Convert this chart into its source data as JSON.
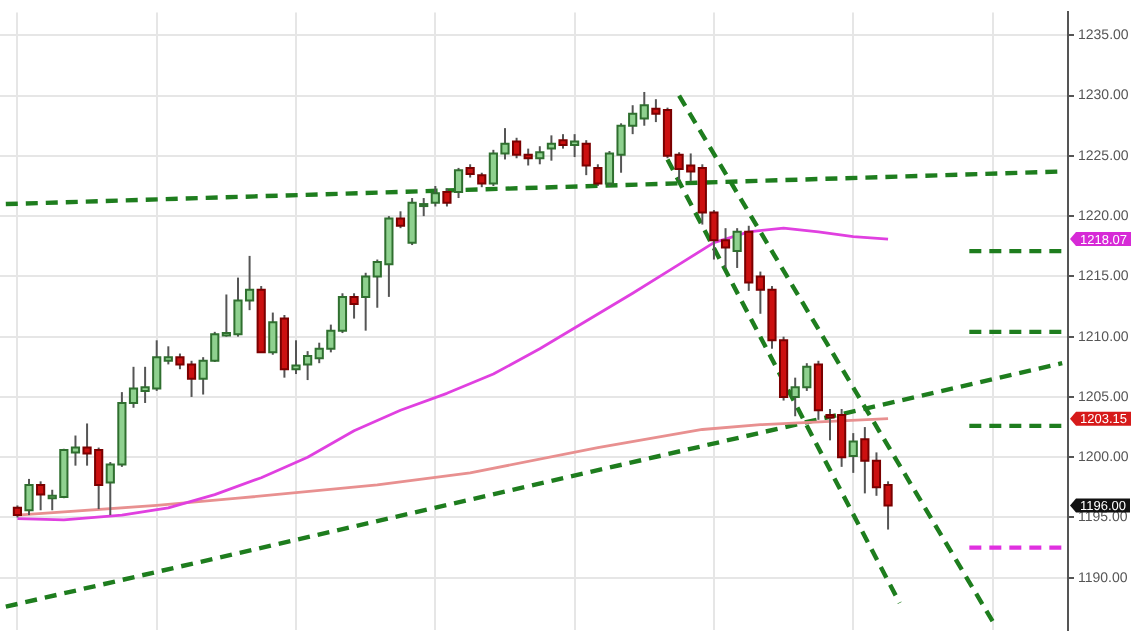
{
  "chart_data": {
    "type": "candlestick",
    "categories": [
      null,
      null,
      null,
      null,
      null,
      null,
      null,
      null,
      null,
      null,
      null,
      null,
      null,
      null,
      null,
      null,
      null,
      null,
      null,
      null,
      null,
      null,
      null,
      null,
      null,
      null,
      null,
      null,
      null,
      null,
      null,
      null,
      null,
      null,
      null,
      null,
      null,
      null,
      null,
      null,
      null,
      null,
      null,
      null,
      null,
      null,
      null,
      null,
      null,
      null,
      null,
      null,
      null,
      null,
      null,
      null,
      null,
      null,
      null,
      null,
      null,
      null,
      null,
      null,
      null,
      null,
      null,
      null,
      null,
      null,
      null,
      null,
      null,
      null,
      null,
      null,
      null,
      null,
      null,
      null,
      null,
      null,
      null,
      null,
      null,
      null,
      null,
      null,
      null,
      null,
      null,
      null
    ],
    "ohlc": [
      null,
      [
        1195.8,
        1196,
        1195,
        1195.2
      ],
      [
        1195.6,
        1198.2,
        1195.2,
        1197.7
      ],
      [
        1197.7,
        1198,
        1195.6,
        1196.9
      ],
      [
        1196.6,
        1197.3,
        1195.6,
        1196.8
      ],
      [
        1196.7,
        1200.7,
        1196.6,
        1200.6
      ],
      [
        1200.4,
        1201.8,
        1199.3,
        1200.8
      ],
      [
        1200.8,
        1202.8,
        1199.3,
        1200.3
      ],
      [
        1200.6,
        1200.8,
        1195.7,
        1197.7
      ],
      [
        1197.9,
        1199.6,
        1195.2,
        1199.4
      ],
      [
        1199.4,
        1205.4,
        1199.2,
        1204.5
      ],
      [
        1204.5,
        1207.5,
        1204.1,
        1205.7
      ],
      [
        1205.5,
        1207.5,
        1204.5,
        1205.8
      ],
      [
        1205.7,
        1209.7,
        1205.5,
        1208.3
      ],
      [
        1208,
        1209.2,
        1207.7,
        1208.3
      ],
      [
        1208.3,
        1208.6,
        1207.3,
        1207.7
      ],
      [
        1207.7,
        1208,
        1205,
        1206.5
      ],
      [
        1206.5,
        1208.3,
        1205.2,
        1208
      ],
      [
        1208,
        1210.4,
        1207.9,
        1210.2
      ],
      [
        1210.1,
        1213.5,
        1210,
        1210.3
      ],
      [
        1210.2,
        1214.9,
        1210,
        1213
      ],
      [
        1213,
        1216.7,
        1212.2,
        1213.9
      ],
      [
        1213.9,
        1214.2,
        1208.7,
        1208.7
      ],
      [
        1208.7,
        1212,
        1208.5,
        1211.2
      ],
      [
        1211.5,
        1211.8,
        1206.6,
        1207.3
      ],
      [
        1207.3,
        1209.7,
        1206.9,
        1207.6
      ],
      [
        1207.7,
        1208.8,
        1206.4,
        1208.4
      ],
      [
        1208.2,
        1209.5,
        1207.8,
        1209
      ],
      [
        1209,
        1211,
        1208.7,
        1210.5
      ],
      [
        1210.5,
        1213.6,
        1210.3,
        1213.3
      ],
      [
        1213.3,
        1213.6,
        1211.5,
        1212.7
      ],
      [
        1213.3,
        1215.3,
        1210.5,
        1215
      ],
      [
        1215,
        1216.4,
        1212.4,
        1216.2
      ],
      [
        1216,
        1220,
        1213.3,
        1219.8
      ],
      [
        1219.8,
        1220.4,
        1219,
        1219.2
      ],
      [
        1217.8,
        1221.5,
        1217.6,
        1221.1
      ],
      [
        1220.9,
        1221.5,
        1220,
        1221
      ],
      [
        1221.1,
        1222.5,
        1220.8,
        1221.9
      ],
      [
        1222,
        1222.3,
        1220.8,
        1221.1
      ],
      [
        1222,
        1224,
        1221.5,
        1223.8
      ],
      [
        1224,
        1224.3,
        1223.2,
        1223.5
      ],
      [
        1223.4,
        1223.6,
        1222.4,
        1222.7
      ],
      [
        1222.7,
        1225.5,
        1222.5,
        1225.2
      ],
      [
        1225.2,
        1227.3,
        1224.7,
        1226
      ],
      [
        1226.2,
        1226.5,
        1224.8,
        1225.1
      ],
      [
        1225.1,
        1225.6,
        1224.2,
        1224.8
      ],
      [
        1224.8,
        1225.8,
        1224.3,
        1225.3
      ],
      [
        1225.6,
        1226.7,
        1224.6,
        1226
      ],
      [
        1226.3,
        1226.8,
        1225.6,
        1225.9
      ],
      [
        1225.9,
        1226.8,
        1224.9,
        1226.2
      ],
      [
        1226,
        1226.3,
        1223.4,
        1224.2
      ],
      [
        1224,
        1224.3,
        1222.5,
        1222.7
      ],
      [
        1222.7,
        1225.4,
        1222.5,
        1225.2
      ],
      [
        1225.1,
        1227.7,
        1223.6,
        1227.5
      ],
      [
        1227.5,
        1229.2,
        1226.8,
        1228.5
      ],
      [
        1228.1,
        1230.3,
        1227.5,
        1229.2
      ],
      [
        1228.9,
        1229.7,
        1227.8,
        1228.5
      ],
      [
        1228.8,
        1229,
        1224.8,
        1225
      ],
      [
        1225.1,
        1225.3,
        1223,
        1223.9
      ],
      [
        1224.2,
        1225.2,
        1222.9,
        1223.7
      ],
      [
        1224,
        1224.3,
        1219.3,
        1220.3
      ],
      [
        1220.3,
        1220.5,
        1216.4,
        1218
      ],
      [
        1218,
        1219,
        1215.7,
        1217.4
      ],
      [
        1217.1,
        1219,
        1215.7,
        1218.7
      ],
      [
        1218.7,
        1219.2,
        1213.8,
        1214.5
      ],
      [
        1215,
        1215.4,
        1211.9,
        1213.9
      ],
      [
        1213.9,
        1214.2,
        1209,
        1209.7
      ],
      [
        1209.7,
        1210,
        1204.7,
        1205
      ],
      [
        1205,
        1206.6,
        1203.4,
        1205.8
      ],
      [
        1205.8,
        1207.8,
        1205.5,
        1207.5
      ],
      [
        1207.7,
        1208,
        1203.1,
        1203.9
      ],
      [
        1203.5,
        1204,
        1201.4,
        1203.3
      ],
      [
        1203.5,
        1204,
        1199.2,
        1200
      ],
      [
        1200.1,
        1202,
        1198.7,
        1201.3
      ],
      [
        1201.5,
        1202.5,
        1197,
        1199.7
      ],
      [
        1199.7,
        1200.4,
        1196.8,
        1197.5
      ],
      [
        1197.7,
        1198,
        1194,
        1196
      ],
      null,
      null,
      null,
      null,
      null,
      null,
      null,
      null,
      null,
      null,
      null,
      null,
      null,
      null,
      null
    ],
    "colors": [
      null,
      "#cc1010",
      "#8fd18f",
      "#cc1010",
      "#8fd18f",
      "#8fd18f",
      "#8fd18f",
      "#cc1010",
      "#cc1010",
      "#8fd18f",
      "#8fd18f",
      "#8fd18f",
      "#8fd18f",
      "#8fd18f",
      "#8fd18f",
      "#cc1010",
      "#cc1010",
      "#8fd18f",
      "#8fd18f",
      "#8fd18f",
      "#8fd18f",
      "#8fd18f",
      "#cc1010",
      "#8fd18f",
      "#cc1010",
      "#8fd18f",
      "#8fd18f",
      "#8fd18f",
      "#8fd18f",
      "#8fd18f",
      "#cc1010",
      "#8fd18f",
      "#8fd18f",
      "#8fd18f",
      "#cc1010",
      "#8fd18f",
      "#8fd18f",
      "#8fd18f",
      "#cc1010",
      "#8fd18f",
      "#cc1010",
      "#cc1010",
      "#8fd18f",
      "#8fd18f",
      "#cc1010",
      "#cc1010",
      "#8fd18f",
      "#8fd18f",
      "#cc1010",
      "#8fd18f",
      "#cc1010",
      "#cc1010",
      "#8fd18f",
      "#8fd18f",
      "#8fd18f",
      "#8fd18f",
      "#cc1010",
      "#cc1010",
      "#cc1010",
      "#cc1010",
      "#cc1010",
      "#cc1010",
      "#cc1010",
      "#8fd18f",
      "#cc1010",
      "#cc1010",
      "#cc1010",
      "#cc1010",
      "#8fd18f",
      "#8fd18f",
      "#cc1010",
      "#cc1010",
      "#cc1010",
      "#8fd18f",
      "#cc1010",
      "#cc1010",
      "#cc1010",
      null,
      null,
      null,
      null,
      null,
      null,
      null,
      null,
      null,
      null,
      null,
      null,
      null,
      null,
      null
    ],
    "series": [
      {
        "type": "line",
        "color": "#e040e0",
        "values": [
          null,
          1194.9,
          null,
          null,
          null,
          1194.8,
          null,
          null,
          null,
          null,
          1195.2,
          null,
          null,
          null,
          1195.8,
          null,
          null,
          null,
          1196.9,
          null,
          null,
          null,
          1198.3,
          null,
          null,
          null,
          1200.0,
          null,
          null,
          null,
          1202.2,
          null,
          null,
          null,
          1203.9,
          null,
          null,
          null,
          1205.3,
          null,
          null,
          null,
          1206.9,
          null,
          null,
          null,
          1209.0,
          null,
          null,
          null,
          1211.3,
          null,
          null,
          null,
          1213.6,
          null,
          null,
          null,
          1216.0,
          null,
          null,
          1217.8,
          null,
          null,
          1218.7,
          null,
          null,
          1219.0,
          null,
          null,
          1218.7,
          null,
          null,
          1218.3,
          null,
          null,
          1218.1,
          null,
          null,
          null,
          null,
          null,
          null,
          null,
          null,
          null,
          null,
          null,
          null,
          null,
          null,
          null
        ]
      },
      {
        "type": "line",
        "color": "#e89090",
        "values": [
          null,
          1195.2,
          null,
          null,
          null,
          null,
          null,
          null,
          null,
          null,
          null,
          null,
          null,
          1196.0,
          null,
          null,
          null,
          null,
          null,
          null,
          1196.6,
          null,
          null,
          null,
          null,
          null,
          null,
          null,
          null,
          null,
          null,
          null,
          1197.7,
          null,
          null,
          null,
          null,
          null,
          null,
          null,
          1198.7,
          null,
          null,
          null,
          null,
          null,
          null,
          null,
          null,
          null,
          null,
          1200.8,
          null,
          null,
          null,
          null,
          null,
          null,
          null,
          null,
          1202.3,
          null,
          null,
          null,
          null,
          1202.7,
          null,
          null,
          null,
          null,
          null,
          null,
          null,
          null,
          null,
          null,
          1203.2,
          null,
          null,
          null,
          null,
          null,
          null,
          null,
          null,
          null,
          null,
          null,
          null,
          null,
          null,
          null
        ]
      },
      {
        "type": "line",
        "color": "#1e7d1e",
        "line_style": "dashed",
        "values": [
          1221.0,
          null,
          null,
          null,
          null,
          null,
          null,
          null,
          null,
          null,
          null,
          null,
          null,
          null,
          null,
          null,
          null,
          null,
          null,
          null,
          null,
          null,
          null,
          null,
          null,
          null,
          null,
          null,
          null,
          null,
          null,
          null,
          null,
          null,
          null,
          null,
          null,
          null,
          null,
          null,
          null,
          null,
          null,
          null,
          null,
          null,
          null,
          null,
          null,
          null,
          null,
          null,
          null,
          null,
          null,
          null,
          null,
          null,
          null,
          null,
          null,
          null,
          null,
          null,
          null,
          null,
          null,
          null,
          null,
          null,
          null,
          null,
          null,
          null,
          null,
          null,
          null,
          null,
          null,
          null,
          null,
          null,
          null,
          null,
          null,
          null,
          null,
          null,
          null,
          null,
          null,
          1223.7
        ]
      },
      {
        "type": "line",
        "color": "#1e7d1e",
        "line_style": "dashed",
        "values": [
          1187.6,
          null,
          null,
          null,
          null,
          null,
          null,
          null,
          null,
          null,
          null,
          null,
          null,
          null,
          null,
          null,
          null,
          null,
          null,
          null,
          null,
          null,
          null,
          null,
          null,
          null,
          null,
          null,
          null,
          null,
          null,
          null,
          null,
          null,
          null,
          null,
          null,
          null,
          null,
          null,
          null,
          null,
          null,
          null,
          null,
          null,
          null,
          null,
          null,
          null,
          null,
          null,
          null,
          null,
          null,
          null,
          null,
          null,
          null,
          null,
          null,
          null,
          null,
          null,
          null,
          null,
          null,
          null,
          null,
          null,
          null,
          null,
          null,
          null,
          null,
          null,
          null,
          null,
          null,
          null,
          null,
          null,
          null,
          null,
          null,
          null,
          null,
          null,
          null,
          null,
          null,
          1207.8
        ]
      },
      {
        "type": "line",
        "color": "#1e7d1e",
        "line_style": "dashed",
        "values": [
          null,
          null,
          null,
          null,
          null,
          null,
          null,
          null,
          null,
          null,
          null,
          null,
          null,
          null,
          null,
          null,
          null,
          null,
          null,
          null,
          null,
          null,
          null,
          null,
          null,
          null,
          null,
          null,
          null,
          null,
          null,
          null,
          null,
          null,
          null,
          null,
          null,
          null,
          null,
          null,
          null,
          null,
          null,
          null,
          null,
          null,
          null,
          null,
          null,
          null,
          null,
          null,
          null,
          null,
          null,
          null,
          null,
          null,
          1230.0,
          null,
          null,
          null,
          null,
          null,
          null,
          null,
          null,
          null,
          null,
          null,
          null,
          null,
          null,
          null,
          null,
          null,
          null,
          null,
          null,
          null,
          null,
          null,
          null,
          null,
          null,
          1186.4,
          null,
          null,
          null,
          null,
          null,
          null
        ]
      },
      {
        "type": "line",
        "color": "#1e7d1e",
        "line_style": "dashed",
        "values": [
          null,
          null,
          null,
          null,
          null,
          null,
          null,
          null,
          null,
          null,
          null,
          null,
          null,
          null,
          null,
          null,
          null,
          null,
          null,
          null,
          null,
          null,
          null,
          null,
          null,
          null,
          null,
          null,
          null,
          null,
          null,
          null,
          null,
          null,
          null,
          null,
          null,
          null,
          null,
          null,
          null,
          null,
          null,
          null,
          null,
          null,
          null,
          null,
          null,
          null,
          null,
          null,
          null,
          null,
          null,
          null,
          null,
          1224.7,
          null,
          null,
          null,
          null,
          null,
          null,
          null,
          null,
          null,
          null,
          null,
          null,
          null,
          null,
          null,
          null,
          null,
          null,
          null,
          1187.9,
          null,
          null,
          null,
          null,
          null,
          null,
          null,
          null,
          null,
          null,
          null,
          null,
          null,
          null
        ]
      },
      {
        "type": "line",
        "color": "#1e7d1e",
        "line_style": "dashed",
        "values": [
          null,
          null,
          null,
          null,
          null,
          null,
          null,
          null,
          null,
          null,
          null,
          null,
          null,
          null,
          null,
          null,
          null,
          null,
          null,
          null,
          null,
          null,
          null,
          null,
          null,
          null,
          null,
          null,
          null,
          null,
          null,
          null,
          null,
          null,
          null,
          null,
          null,
          null,
          null,
          null,
          null,
          null,
          null,
          null,
          null,
          null,
          null,
          null,
          null,
          null,
          null,
          null,
          null,
          null,
          null,
          null,
          null,
          null,
          null,
          null,
          null,
          null,
          null,
          null,
          null,
          null,
          null,
          null,
          null,
          null,
          null,
          null,
          null,
          null,
          null,
          null,
          null,
          null,
          null,
          null,
          null,
          null,
          null,
          1217.1,
          null,
          null,
          null,
          null,
          null,
          null,
          null,
          1217.1
        ]
      },
      {
        "type": "line",
        "color": "#1e7d1e",
        "line_style": "dashed",
        "values": [
          null,
          null,
          null,
          null,
          null,
          null,
          null,
          null,
          null,
          null,
          null,
          null,
          null,
          null,
          null,
          null,
          null,
          null,
          null,
          null,
          null,
          null,
          null,
          null,
          null,
          null,
          null,
          null,
          null,
          null,
          null,
          null,
          null,
          null,
          null,
          null,
          null,
          null,
          null,
          null,
          null,
          null,
          null,
          null,
          null,
          null,
          null,
          null,
          null,
          null,
          null,
          null,
          null,
          null,
          null,
          null,
          null,
          null,
          null,
          null,
          null,
          null,
          null,
          null,
          null,
          null,
          null,
          null,
          null,
          null,
          null,
          null,
          null,
          null,
          null,
          null,
          null,
          null,
          null,
          null,
          null,
          null,
          null,
          1210.4,
          null,
          null,
          null,
          null,
          null,
          null,
          null,
          1210.4
        ]
      },
      {
        "type": "line",
        "color": "#1e7d1e",
        "line_style": "dashed",
        "values": [
          null,
          null,
          null,
          null,
          null,
          null,
          null,
          null,
          null,
          null,
          null,
          null,
          null,
          null,
          null,
          null,
          null,
          null,
          null,
          null,
          null,
          null,
          null,
          null,
          null,
          null,
          null,
          null,
          null,
          null,
          null,
          null,
          null,
          null,
          null,
          null,
          null,
          null,
          null,
          null,
          null,
          null,
          null,
          null,
          null,
          null,
          null,
          null,
          null,
          null,
          null,
          null,
          null,
          null,
          null,
          null,
          null,
          null,
          null,
          null,
          null,
          null,
          null,
          null,
          null,
          null,
          null,
          null,
          null,
          null,
          null,
          null,
          null,
          null,
          null,
          null,
          null,
          null,
          null,
          null,
          null,
          null,
          null,
          1202.6,
          null,
          null,
          null,
          null,
          null,
          null,
          null,
          1202.6
        ]
      },
      {
        "type": "line",
        "color": "#e030e0",
        "line_style": "dashed",
        "values": [
          null,
          null,
          null,
          null,
          null,
          null,
          null,
          null,
          null,
          null,
          null,
          null,
          null,
          null,
          null,
          null,
          null,
          null,
          null,
          null,
          null,
          null,
          null,
          null,
          null,
          null,
          null,
          null,
          null,
          null,
          null,
          null,
          null,
          null,
          null,
          null,
          null,
          null,
          null,
          null,
          null,
          null,
          null,
          null,
          null,
          null,
          null,
          null,
          null,
          null,
          null,
          null,
          null,
          null,
          null,
          null,
          null,
          null,
          null,
          null,
          null,
          null,
          null,
          null,
          null,
          null,
          null,
          null,
          null,
          null,
          null,
          null,
          null,
          null,
          null,
          null,
          null,
          null,
          null,
          null,
          null,
          null,
          null,
          1192.5,
          null,
          null,
          null,
          null,
          null,
          null,
          null,
          1192.5
        ]
      }
    ],
    "ylim": [
      1185.7,
      1236.9
    ],
    "yticks": [
      {
        "value": 1190,
        "label": "1190.00"
      },
      {
        "value": 1195,
        "label": "1195.00"
      },
      {
        "value": 1200,
        "label": "1200.00"
      },
      {
        "value": 1205,
        "label": "1205.00"
      },
      {
        "value": 1210,
        "label": "1210.00"
      },
      {
        "value": 1215,
        "label": "1215.00"
      },
      {
        "value": 1220,
        "label": "1220.00"
      },
      {
        "value": 1225,
        "label": "1225.00"
      },
      {
        "value": 1230,
        "label": "1230.00"
      },
      {
        "value": 1235,
        "label": "1235.00"
      }
    ],
    "annotations": [
      "1218.07",
      "1203.15",
      "1196.00"
    ],
    "grid": true,
    "legend": false,
    "marker": "none",
    "tick_labels": "y"
  }
}
